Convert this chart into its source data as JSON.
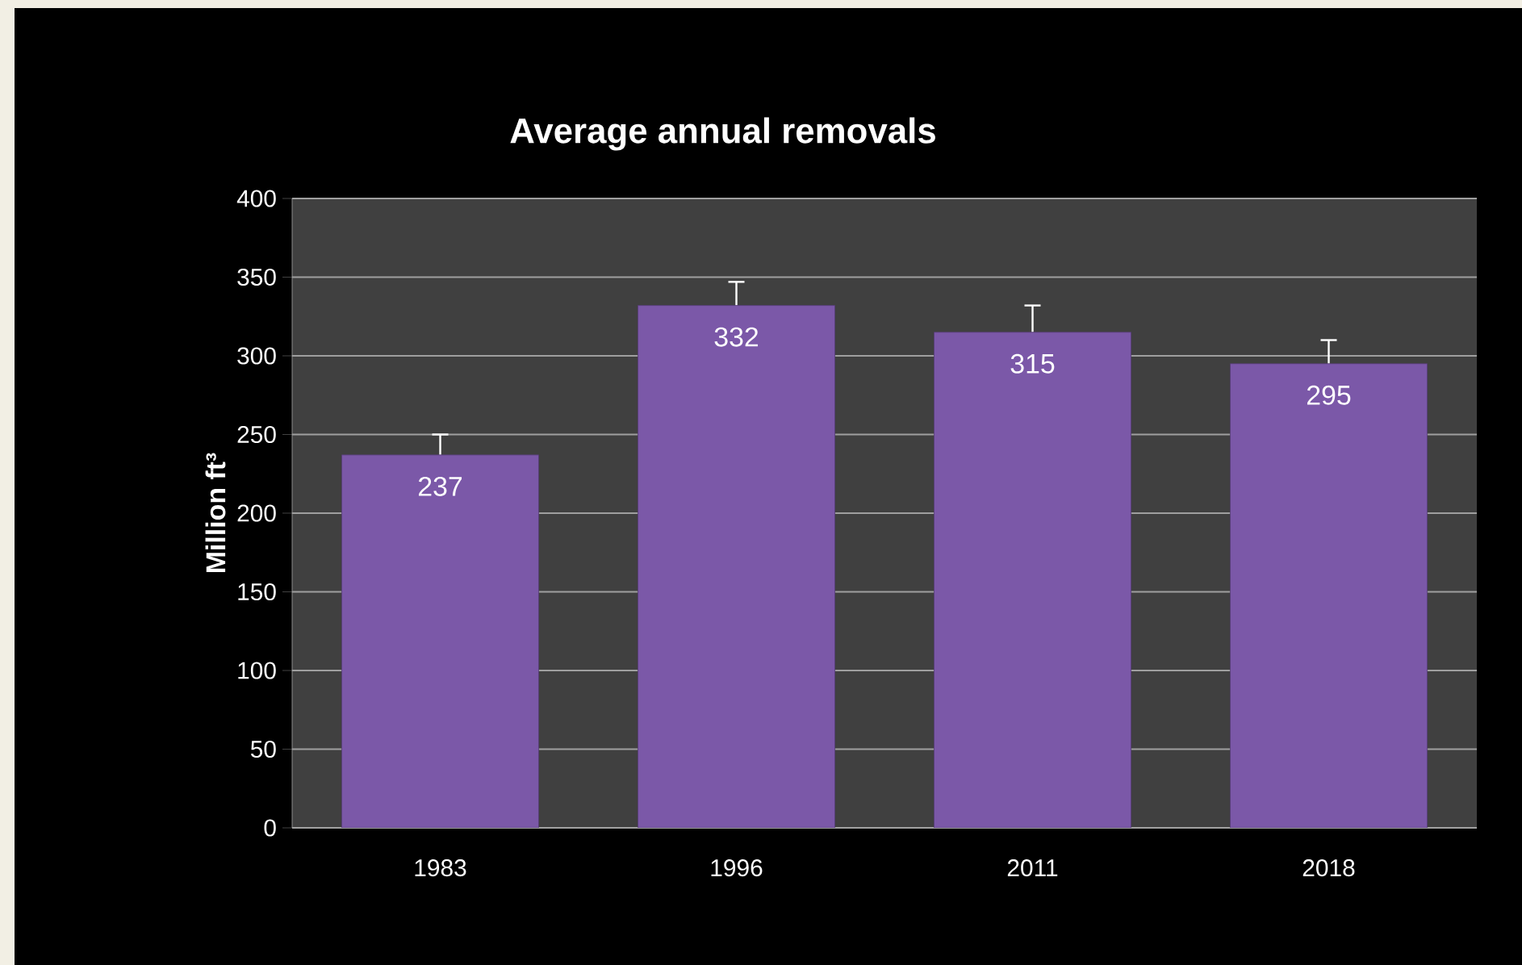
{
  "chart_data": {
    "type": "bar",
    "title": "Average annual removals",
    "ylabel": "Million ft³",
    "categories": [
      "1983",
      "1996",
      "2011",
      "2018"
    ],
    "values": [
      237,
      332,
      315,
      295
    ],
    "errors": [
      13,
      15,
      17,
      15
    ],
    "color": "#7b58a8",
    "ylim": [
      0,
      400
    ],
    "yticks": [
      0,
      50,
      100,
      150,
      200,
      250,
      300,
      350,
      400
    ],
    "grid": "y",
    "data_labels": true
  }
}
